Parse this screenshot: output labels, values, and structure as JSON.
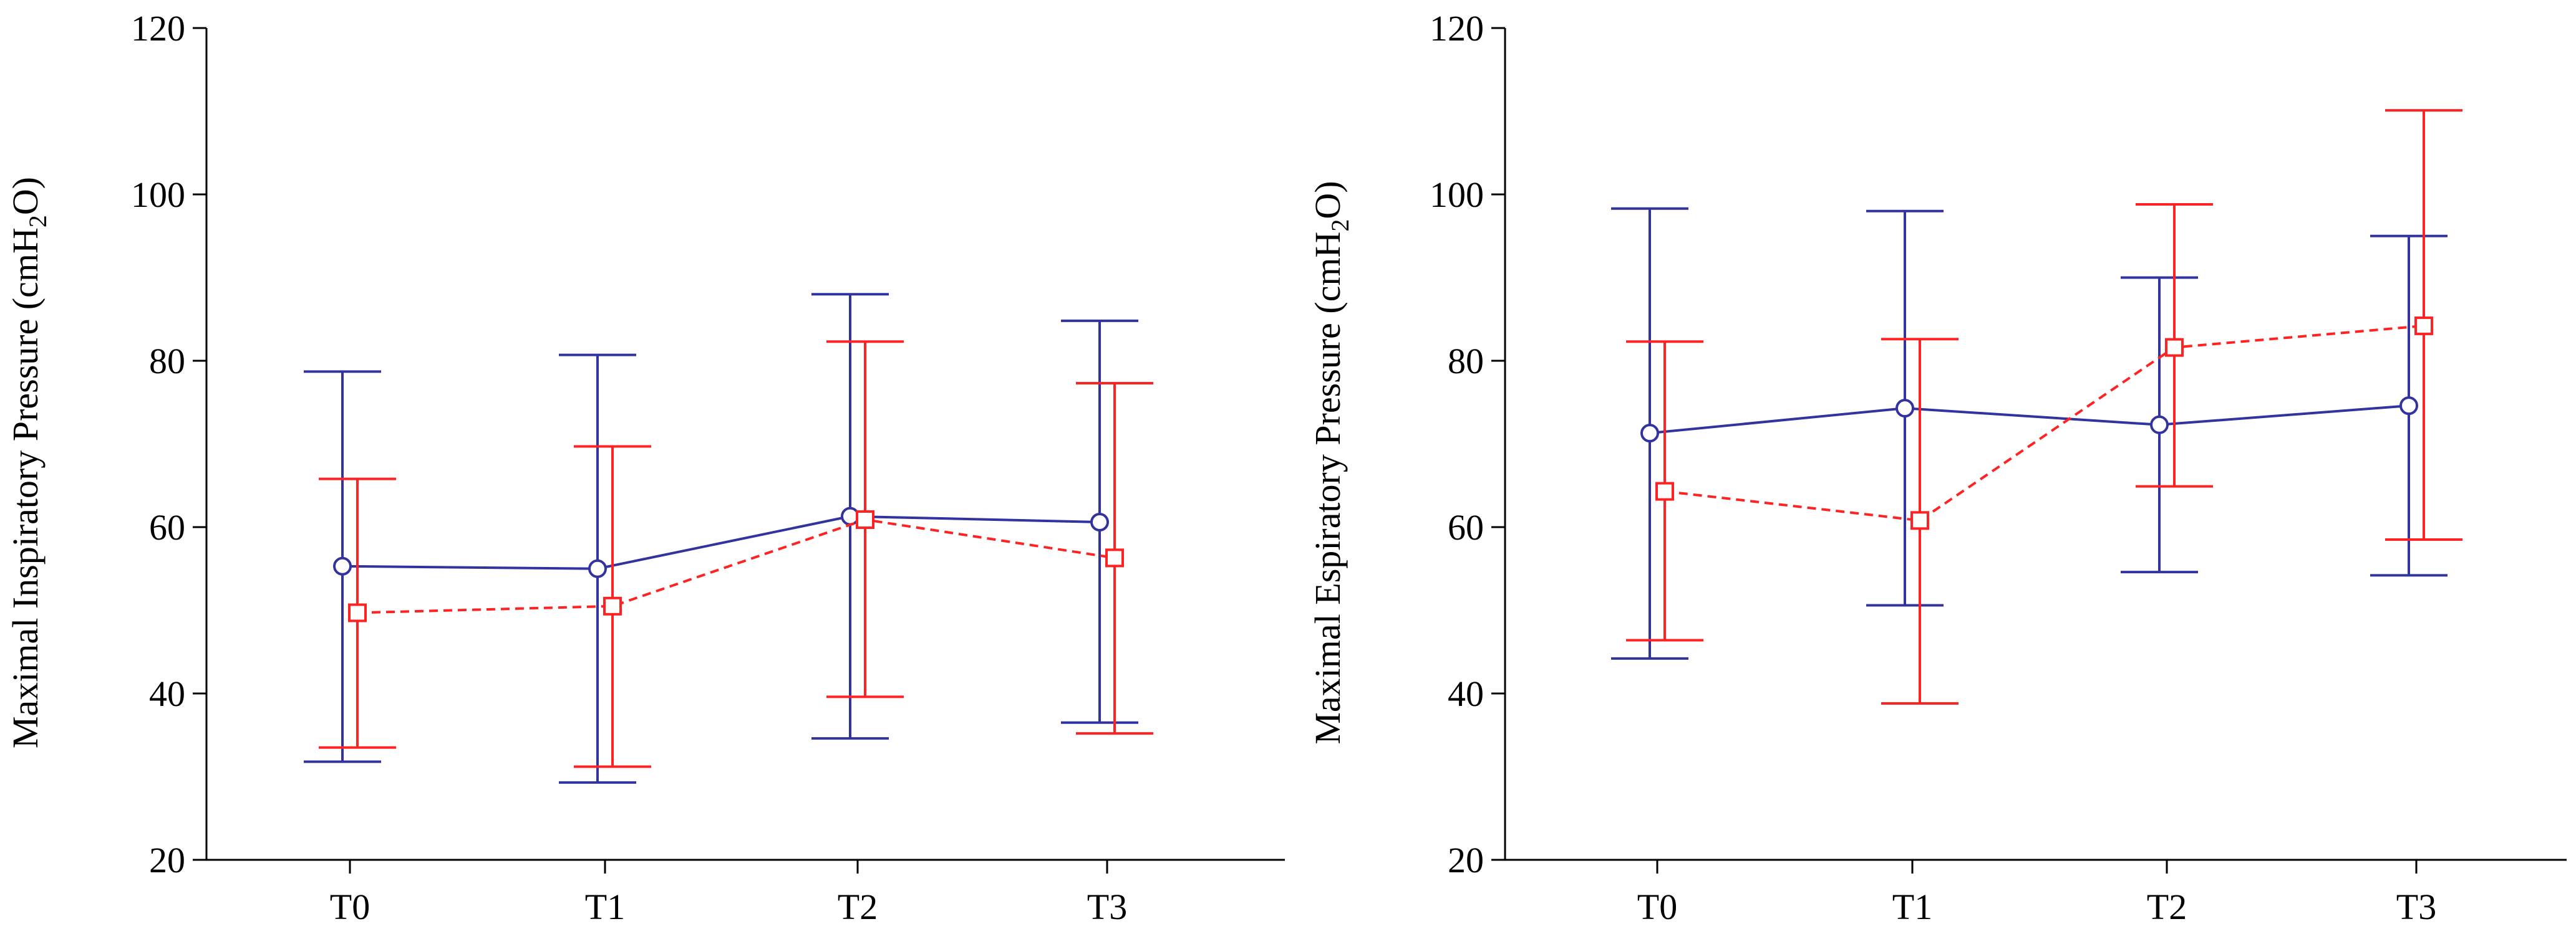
{
  "chart_data": [
    {
      "type": "line",
      "title": "",
      "categories": [
        "T0",
        "T1",
        "T2",
        "T3"
      ],
      "ylabel": "Maximal Inspiratory Pressure (cmH2O)",
      "ylabel_main": "Maximal Inspiratory Pressure (cmH",
      "ylabel_sub": "2",
      "ylabel_end": "O)",
      "ylim": [
        20,
        120
      ],
      "yticks": [
        "20",
        "40",
        "60",
        "80",
        "100",
        "120"
      ],
      "series": [
        {
          "name": "blue-circle-solid",
          "color": "#3333a0",
          "marker": "circle",
          "linestyle": "solid",
          "values": [
            55.3,
            55.0,
            61.3,
            60.6
          ],
          "lower": [
            31.8,
            29.3,
            34.6,
            36.5
          ],
          "upper": [
            78.7,
            80.7,
            88.0,
            84.8
          ]
        },
        {
          "name": "red-square-dashed",
          "color": "#ff2222",
          "marker": "square",
          "linestyle": "dashed",
          "values": [
            49.7,
            50.5,
            60.9,
            56.3
          ],
          "lower": [
            33.5,
            31.2,
            39.6,
            35.2
          ],
          "upper": [
            65.8,
            69.7,
            82.3,
            77.3
          ]
        }
      ]
    },
    {
      "type": "line",
      "title": "",
      "categories": [
        "T0",
        "T1",
        "T2",
        "T3"
      ],
      "ylabel": "Maximal Espiratory Pressure (cmH2O)",
      "ylabel_main": "Maximal Espiratory Pressure (cmH",
      "ylabel_sub": "2",
      "ylabel_end": "O)",
      "ylim": [
        20,
        120
      ],
      "yticks": [
        "20",
        "40",
        "60",
        "80",
        "100",
        "120"
      ],
      "series": [
        {
          "name": "blue-circle-solid",
          "color": "#3333a0",
          "marker": "circle",
          "linestyle": "solid",
          "values": [
            71.3,
            74.3,
            72.3,
            74.6
          ],
          "lower": [
            44.2,
            50.6,
            54.6,
            54.2
          ],
          "upper": [
            98.3,
            98.0,
            90.0,
            95.0
          ]
        },
        {
          "name": "red-square-dashed",
          "color": "#ff2222",
          "marker": "square",
          "linestyle": "dashed",
          "values": [
            64.3,
            60.8,
            81.6,
            84.2
          ],
          "lower": [
            46.4,
            38.8,
            64.9,
            58.5
          ],
          "upper": [
            82.3,
            82.6,
            98.8,
            110.1
          ]
        }
      ]
    }
  ]
}
